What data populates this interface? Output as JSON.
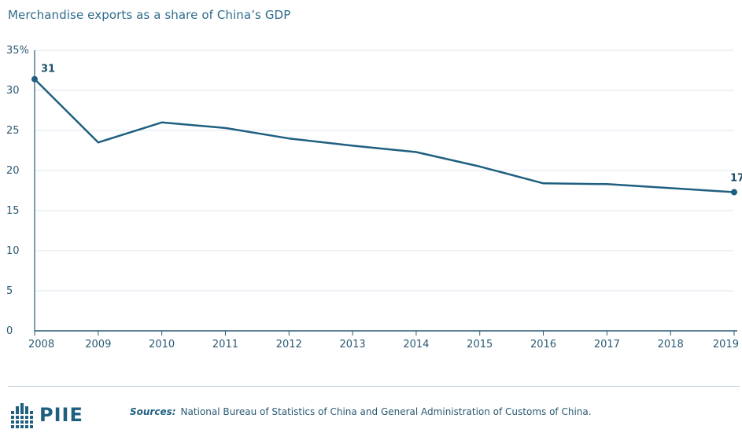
{
  "title": "Merchandise exports as a share of China’s GDP",
  "chart_data": {
    "type": "line",
    "title": "Merchandise exports as a share of China’s GDP",
    "x": [
      "2008",
      "2009",
      "2010",
      "2011",
      "2012",
      "2013",
      "2014",
      "2015",
      "2016",
      "2017",
      "2018",
      "2019"
    ],
    "series": [
      {
        "values": [
          31.4,
          23.5,
          26.0,
          25.3,
          24.0,
          23.1,
          22.3,
          20.5,
          18.4,
          18.3,
          17.8,
          17.3
        ]
      }
    ],
    "ylim": [
      0,
      35
    ],
    "yticks": [
      0,
      5,
      10,
      15,
      20,
      25,
      30,
      35
    ],
    "ytick_labels": [
      "0",
      "5",
      "10",
      "15",
      "20",
      "25",
      "30",
      "35%"
    ],
    "grid": "horizontal",
    "line_color": "#1f5f80",
    "annotations": [
      {
        "x": "2008",
        "text": "31"
      },
      {
        "x": "2019",
        "text": "17"
      }
    ]
  },
  "footer": {
    "logo_text": "PIIE",
    "sources_label": "Sources:",
    "sources_text": "National Bureau of Statistics of China and General Administration of Customs of China."
  }
}
